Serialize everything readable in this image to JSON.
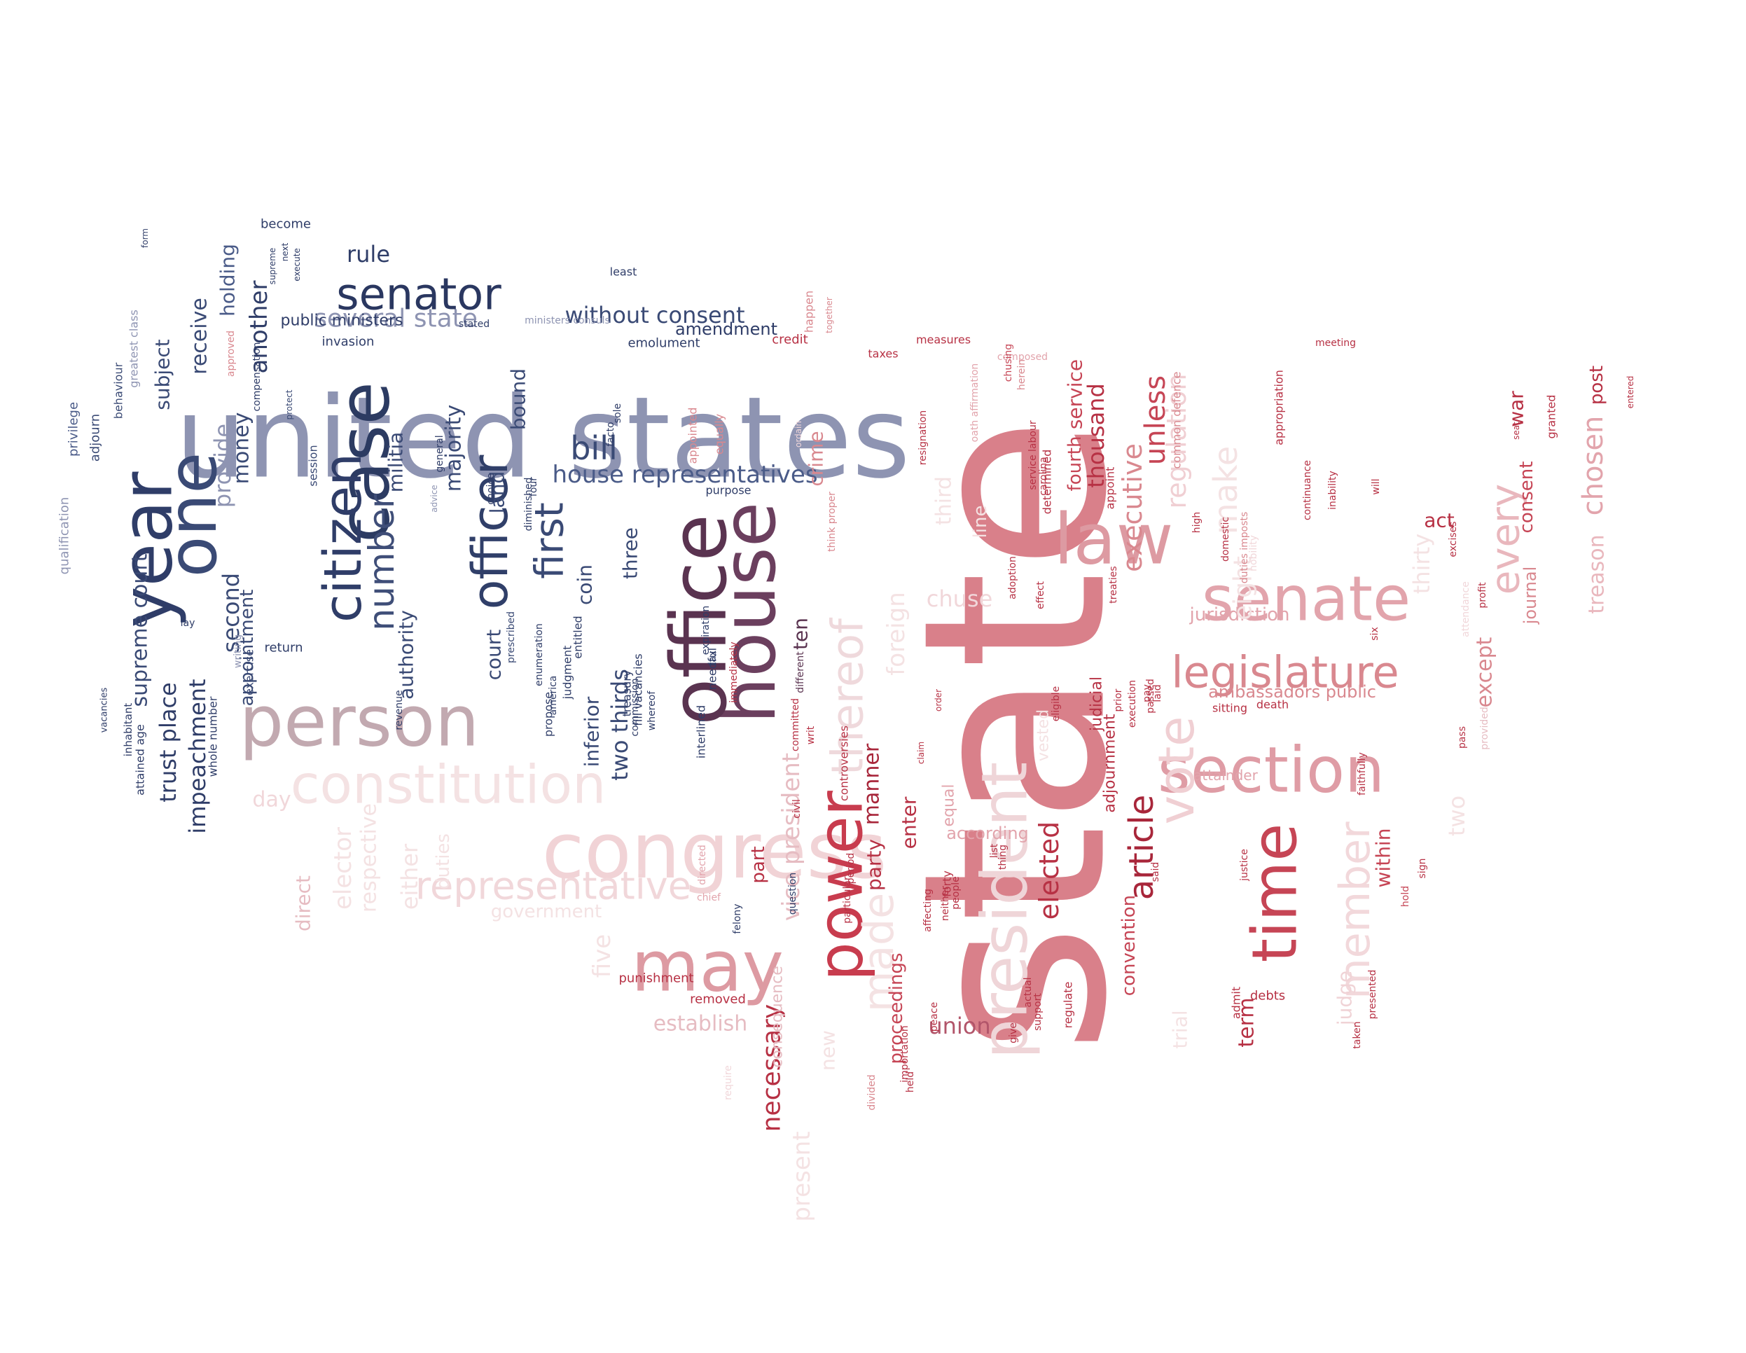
{
  "words": [
    {
      "text": "state",
      "color": "#d9808a"
    },
    {
      "text": "united states",
      "color": "#8e94b2"
    },
    {
      "text": "congress",
      "color": "#f1d3d6"
    },
    {
      "text": "person",
      "color": "#c2a9b0"
    },
    {
      "text": "president",
      "color": "#efd5d8"
    },
    {
      "text": "section",
      "color": "#df9ca5"
    },
    {
      "text": "case",
      "color": "#2c3b62"
    },
    {
      "text": "house",
      "color": "#6b3f5e"
    },
    {
      "text": "office",
      "color": "#5a3350"
    },
    {
      "text": "constitution",
      "color": "#f4e2e3"
    },
    {
      "text": "law",
      "color": "#dd9aa2"
    },
    {
      "text": "senate",
      "color": "#e2a4ac"
    },
    {
      "text": "may",
      "color": "#dd9aa2"
    },
    {
      "text": "year",
      "color": "#2f3d68"
    },
    {
      "text": "one",
      "color": "#3a4a75"
    },
    {
      "text": "power",
      "color": "#c83c4e"
    },
    {
      "text": "time",
      "color": "#c64555"
    },
    {
      "text": "senator",
      "color": "#2a3760"
    },
    {
      "text": "legislature",
      "color": "#d9888f"
    },
    {
      "text": "representative",
      "color": "#f1d7da"
    },
    {
      "text": "officer",
      "color": "#303f69"
    },
    {
      "text": "citizen",
      "color": "#2f3d68"
    },
    {
      "text": "vote",
      "color": "#f0cfd3"
    },
    {
      "text": "article",
      "color": "#a8263a"
    },
    {
      "text": "member",
      "color": "#f2d8db"
    },
    {
      "text": "thereof",
      "color": "#efd9dc"
    },
    {
      "text": "bill",
      "color": "#3a4a75"
    },
    {
      "text": "first",
      "color": "#3a4a75"
    },
    {
      "text": "number",
      "color": "#3f4e78"
    },
    {
      "text": "house representatives",
      "color": "#4a5b88"
    },
    {
      "text": "without consent",
      "color": "#3a4a75"
    },
    {
      "text": "several state",
      "color": "#8e94b2"
    },
    {
      "text": "rule",
      "color": "#2f3d68"
    },
    {
      "text": "every",
      "color": "#e9b7bd"
    },
    {
      "text": "make",
      "color": "#f4e2e3"
    },
    {
      "text": "elected",
      "color": "#b73144"
    },
    {
      "text": "executive",
      "color": "#d9888f"
    },
    {
      "text": "unless",
      "color": "#c64555"
    },
    {
      "text": "made",
      "color": "#f4e2e3"
    },
    {
      "text": "chuse",
      "color": "#f1d7da"
    },
    {
      "text": "union",
      "color": "#b2556a"
    },
    {
      "text": "establish",
      "color": "#e6bcc2"
    },
    {
      "text": "necessary",
      "color": "#b73144"
    },
    {
      "text": "manner",
      "color": "#a8263a"
    },
    {
      "text": "vice president",
      "color": "#e6bcc2"
    },
    {
      "text": "within",
      "color": "#c64555"
    },
    {
      "text": "judge",
      "color": "#f0d3d6"
    },
    {
      "text": "term",
      "color": "#b73144"
    },
    {
      "text": "except",
      "color": "#d9888f"
    },
    {
      "text": "jurisdiction",
      "color": "#e2a4ac"
    },
    {
      "text": "ambassadors public",
      "color": "#d9888f"
    },
    {
      "text": "treason",
      "color": "#e9b7bd"
    },
    {
      "text": "chosen",
      "color": "#e2a4ac"
    },
    {
      "text": "consent",
      "color": "#c64555"
    },
    {
      "text": "journal",
      "color": "#d9888f"
    },
    {
      "text": "act",
      "color": "#b73144"
    },
    {
      "text": "war",
      "color": "#b73144"
    },
    {
      "text": "post",
      "color": "#b73144"
    },
    {
      "text": "impeachment",
      "color": "#2f3d68"
    },
    {
      "text": "trust place",
      "color": "#2f3d68"
    },
    {
      "text": "supreme court",
      "color": "#3a4a75"
    },
    {
      "text": "subject",
      "color": "#3a4a75"
    },
    {
      "text": "receive",
      "color": "#3a4a75"
    },
    {
      "text": "holding",
      "color": "#4a5b88"
    },
    {
      "text": "another",
      "color": "#2f3d68"
    },
    {
      "text": "provide",
      "color": "#8e94b2"
    },
    {
      "text": "money",
      "color": "#3a4a75"
    },
    {
      "text": "second",
      "color": "#3a4a75"
    },
    {
      "text": "appointment",
      "color": "#3a4a75"
    },
    {
      "text": "authority",
      "color": "#3a4a75"
    },
    {
      "text": "majority",
      "color": "#3a4a75"
    },
    {
      "text": "militia",
      "color": "#3a4a75"
    },
    {
      "text": "bound",
      "color": "#3a4a75"
    },
    {
      "text": "court",
      "color": "#3a4a75"
    },
    {
      "text": "land",
      "color": "#3a4a75"
    },
    {
      "text": "coin",
      "color": "#3a4a75"
    },
    {
      "text": "inferior",
      "color": "#3a4a75"
    },
    {
      "text": "two thirds",
      "color": "#3a4a75"
    },
    {
      "text": "three",
      "color": "#3a4a75"
    },
    {
      "text": "amendment",
      "color": "#2f3d68"
    },
    {
      "text": "crime",
      "color": "#d9888f"
    },
    {
      "text": "ten",
      "color": "#5a3350"
    },
    {
      "text": "day",
      "color": "#f1d7da"
    },
    {
      "text": "direct",
      "color": "#e6bcc2"
    },
    {
      "text": "elector",
      "color": "#f4e2e3"
    },
    {
      "text": "respective",
      "color": "#f4e2e3"
    },
    {
      "text": "either",
      "color": "#f4e2e3"
    },
    {
      "text": "duties",
      "color": "#f4e2e3"
    },
    {
      "text": "government",
      "color": "#f4e2e3"
    },
    {
      "text": "five",
      "color": "#f4e2e3"
    },
    {
      "text": "punishment",
      "color": "#b73144"
    },
    {
      "text": "removed",
      "color": "#b73144"
    },
    {
      "text": "consequence",
      "color": "#e6bcc2"
    },
    {
      "text": "present",
      "color": "#f4e2e3"
    },
    {
      "text": "new",
      "color": "#f4e2e3"
    },
    {
      "text": "part",
      "color": "#b73144"
    },
    {
      "text": "party",
      "color": "#b73144"
    },
    {
      "text": "enter",
      "color": "#b73144"
    },
    {
      "text": "proceedings",
      "color": "#c64555"
    },
    {
      "text": "according",
      "color": "#e2a4ac"
    },
    {
      "text": "equal",
      "color": "#e2a4ac"
    },
    {
      "text": "service",
      "color": "#c64555"
    },
    {
      "text": "thousand",
      "color": "#b73144"
    },
    {
      "text": "fourth",
      "color": "#c64555"
    },
    {
      "text": "regulation",
      "color": "#f0cfd3"
    },
    {
      "text": "eight",
      "color": "#f4e2e3"
    },
    {
      "text": "thirty",
      "color": "#f4e2e3"
    },
    {
      "text": "two",
      "color": "#f4e2e3"
    },
    {
      "text": "trial",
      "color": "#f4e2e3"
    },
    {
      "text": "convention",
      "color": "#c64555"
    },
    {
      "text": "adjournment",
      "color": "#b73144"
    },
    {
      "text": "judicial",
      "color": "#b73144"
    },
    {
      "text": "foreign",
      "color": "#f4e2e3"
    },
    {
      "text": "third",
      "color": "#f4e2e3"
    },
    {
      "text": "line",
      "color": "#f4e2e3"
    },
    {
      "text": "vested",
      "color": "#f4e2e3"
    },
    {
      "text": "attainder",
      "color": "#e2a4ac"
    },
    {
      "text": "debts",
      "color": "#b73144"
    },
    {
      "text": "sitting",
      "color": "#b73144"
    },
    {
      "text": "death",
      "color": "#b73144"
    },
    {
      "text": "faithfully",
      "color": "#b73144"
    },
    {
      "text": "qualification",
      "color": "#8e94b2"
    },
    {
      "text": "privilege",
      "color": "#4a5b88"
    },
    {
      "text": "adjourn",
      "color": "#3a4a75"
    },
    {
      "text": "vacancies",
      "color": "#2f3d68"
    },
    {
      "text": "inhabitant",
      "color": "#2f3d68"
    },
    {
      "text": "attained age",
      "color": "#2f3d68"
    },
    {
      "text": "greatest class",
      "color": "#8e94b2"
    },
    {
      "text": "behaviour",
      "color": "#3a4a75"
    },
    {
      "text": "approved",
      "color": "#d9888f"
    },
    {
      "text": "whole number",
      "color": "#2f3d68"
    },
    {
      "text": "lay",
      "color": "#2f3d68"
    },
    {
      "text": "writing",
      "color": "#8e94b2"
    },
    {
      "text": "exercise",
      "color": "#3a4a75"
    },
    {
      "text": "compensation",
      "color": "#2f3d68"
    },
    {
      "text": "become",
      "color": "#2f3d68"
    },
    {
      "text": "supreme",
      "color": "#2f3d68"
    },
    {
      "text": "next",
      "color": "#2f3d68"
    },
    {
      "text": "execute",
      "color": "#2f3d68"
    },
    {
      "text": "form",
      "color": "#2f3d68"
    },
    {
      "text": "least",
      "color": "#2f3d68"
    },
    {
      "text": "public ministers",
      "color": "#2f3d68"
    },
    {
      "text": "invasion",
      "color": "#2f3d68"
    },
    {
      "text": "stated",
      "color": "#2f3d68"
    },
    {
      "text": "ministers consuls",
      "color": "#8e94b2"
    },
    {
      "text": "emolument",
      "color": "#2f3d68"
    },
    {
      "text": "credit",
      "color": "#b73144"
    },
    {
      "text": "happen",
      "color": "#d9888f"
    },
    {
      "text": "together",
      "color": "#d9888f"
    },
    {
      "text": "return",
      "color": "#2f3d68"
    },
    {
      "text": "session",
      "color": "#3a4a75"
    },
    {
      "text": "protect",
      "color": "#3a4a75"
    },
    {
      "text": "advice",
      "color": "#8e94b2"
    },
    {
      "text": "general",
      "color": "#2f3d68"
    },
    {
      "text": "choice",
      "color": "#2f3d68"
    },
    {
      "text": "revenue",
      "color": "#2f3d68"
    },
    {
      "text": "prescribed",
      "color": "#3a4a75"
    },
    {
      "text": "enumeration",
      "color": "#2f3d68"
    },
    {
      "text": "diminished",
      "color": "#2f3d68"
    },
    {
      "text": "four",
      "color": "#2f3d68"
    },
    {
      "text": "propose",
      "color": "#2f3d68"
    },
    {
      "text": "america",
      "color": "#2f3d68"
    },
    {
      "text": "judgment",
      "color": "#2f3d68"
    },
    {
      "text": "entitled",
      "color": "#2f3d68"
    },
    {
      "text": "treasury",
      "color": "#2f3d68"
    },
    {
      "text": "fill vacancies",
      "color": "#2f3d68"
    },
    {
      "text": "commission",
      "color": "#2f3d68"
    },
    {
      "text": "whereof",
      "color": "#2f3d68"
    },
    {
      "text": "sole",
      "color": "#2f3d68"
    },
    {
      "text": "facto",
      "color": "#2f3d68"
    },
    {
      "text": "appointed",
      "color": "#d9888f"
    },
    {
      "text": "equally",
      "color": "#d9888f"
    },
    {
      "text": "ordain",
      "color": "#f1d7da"
    },
    {
      "text": "purpose",
      "color": "#2f3d68"
    },
    {
      "text": "expiration",
      "color": "#2f3d68"
    },
    {
      "text": "tax",
      "color": "#2f3d68"
    },
    {
      "text": "interlined",
      "color": "#2f3d68"
    },
    {
      "text": "needful",
      "color": "#2f3d68"
    },
    {
      "text": "immediately",
      "color": "#b73144"
    },
    {
      "text": "different",
      "color": "#5a3350"
    },
    {
      "text": "committed",
      "color": "#b73144"
    },
    {
      "text": "writ",
      "color": "#b73144"
    },
    {
      "text": "controversies",
      "color": "#b73144"
    },
    {
      "text": "think proper",
      "color": "#d9888f"
    },
    {
      "text": "civil",
      "color": "#b73144"
    },
    {
      "text": "particular",
      "color": "#b73144"
    },
    {
      "text": "taxes",
      "color": "#b73144"
    },
    {
      "text": "measures",
      "color": "#b73144"
    },
    {
      "text": "resignation",
      "color": "#b73144"
    },
    {
      "text": "oath affirmation",
      "color": "#e2a4ac"
    },
    {
      "text": "composed",
      "color": "#e2a4ac"
    },
    {
      "text": "chusing",
      "color": "#c64555"
    },
    {
      "text": "herein",
      "color": "#d9888f"
    },
    {
      "text": "service labour",
      "color": "#b73144"
    },
    {
      "text": "carolina",
      "color": "#b73144"
    },
    {
      "text": "determined",
      "color": "#b73144"
    },
    {
      "text": "appoint",
      "color": "#b73144"
    },
    {
      "text": "common defence",
      "color": "#d9888f"
    },
    {
      "text": "appropriation",
      "color": "#b73144"
    },
    {
      "text": "meeting",
      "color": "#b73144"
    },
    {
      "text": "entered",
      "color": "#b73144"
    },
    {
      "text": "seat",
      "color": "#b73144"
    },
    {
      "text": "granted",
      "color": "#b73144"
    },
    {
      "text": "order",
      "color": "#b73144"
    },
    {
      "text": "claim",
      "color": "#b73144"
    },
    {
      "text": "adoption",
      "color": "#b73144"
    },
    {
      "text": "effect",
      "color": "#b73144"
    },
    {
      "text": "treaties",
      "color": "#b73144"
    },
    {
      "text": "eligible",
      "color": "#b73144"
    },
    {
      "text": "prior",
      "color": "#b73144"
    },
    {
      "text": "execution",
      "color": "#b73144"
    },
    {
      "text": "pay",
      "color": "#b73144"
    },
    {
      "text": "passed",
      "color": "#b73144"
    },
    {
      "text": "laid",
      "color": "#b73144"
    },
    {
      "text": "high",
      "color": "#b73144"
    },
    {
      "text": "domestic",
      "color": "#b73144"
    },
    {
      "text": "duties imposts",
      "color": "#d9888f"
    },
    {
      "text": "nobility",
      "color": "#f1d7da"
    },
    {
      "text": "continuance",
      "color": "#b73144"
    },
    {
      "text": "inability",
      "color": "#b73144"
    },
    {
      "text": "will",
      "color": "#b73144"
    },
    {
      "text": "excises",
      "color": "#b73144"
    },
    {
      "text": "profit",
      "color": "#b73144"
    },
    {
      "text": "attendance",
      "color": "#f1d7da"
    },
    {
      "text": "six",
      "color": "#b73144"
    },
    {
      "text": "pass",
      "color": "#b73144"
    },
    {
      "text": "provided",
      "color": "#e6bcc2"
    },
    {
      "text": "hold",
      "color": "#c64555"
    },
    {
      "text": "sign",
      "color": "#b73144"
    },
    {
      "text": "said",
      "color": "#b73144"
    },
    {
      "text": "justice",
      "color": "#b73144"
    },
    {
      "text": "taken",
      "color": "#b73144"
    },
    {
      "text": "admit",
      "color": "#b73144"
    },
    {
      "text": "presented",
      "color": "#b73144"
    },
    {
      "text": "regulate",
      "color": "#b73144"
    },
    {
      "text": "support",
      "color": "#b73144"
    },
    {
      "text": "actual",
      "color": "#b73144"
    },
    {
      "text": "give",
      "color": "#b73144"
    },
    {
      "text": "list",
      "color": "#b73144"
    },
    {
      "text": "thing",
      "color": "#b73144"
    },
    {
      "text": "forty",
      "color": "#b73144"
    },
    {
      "text": "neither",
      "color": "#b73144"
    },
    {
      "text": "people",
      "color": "#b73144"
    },
    {
      "text": "affecting",
      "color": "#b73144"
    },
    {
      "text": "peace",
      "color": "#b73144"
    },
    {
      "text": "divided",
      "color": "#d9888f"
    },
    {
      "text": "held",
      "color": "#b73144"
    },
    {
      "text": "importation",
      "color": "#b73144"
    },
    {
      "text": "period",
      "color": "#b73144"
    },
    {
      "text": "question",
      "color": "#2f3d68"
    },
    {
      "text": "felony",
      "color": "#2f3d68"
    },
    {
      "text": "chief",
      "color": "#e2a4ac"
    },
    {
      "text": "directed",
      "color": "#e2a4ac"
    },
    {
      "text": "require",
      "color": "#f1d7da"
    }
  ]
}
